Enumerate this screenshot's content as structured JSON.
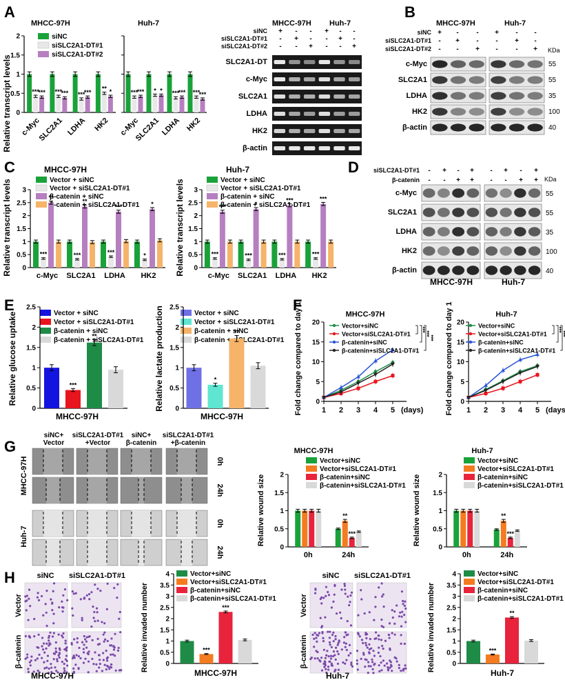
{
  "panels": {
    "A": "A",
    "B": "B",
    "C": "C",
    "D": "D",
    "E": "E",
    "F": "F",
    "G": "G",
    "H": "H"
  },
  "colors": {
    "green": "#1aa23a",
    "light": "#e8e8e8",
    "purple": "#b67fc0",
    "orange": "#f5b46a",
    "blue": "#1414e0",
    "red": "#e8141e",
    "dkgreen": "#1e8c46",
    "lgray": "#d9d9d9",
    "periw": "#7070e6",
    "teal": "#5ee6d2",
    "peach": "#f5b46a",
    "orange2": "#f47b20",
    "pink": "#e8233c"
  },
  "panelA": {
    "ylabel": "Relative transcript levels",
    "legend": [
      "siNC",
      "siSLC2A1-DT#1",
      "siSLC2A1-DT#2"
    ],
    "cell_titles": [
      "MHCC-97H",
      "Huh-7"
    ],
    "blot_header": [
      "MHCC-97H",
      "Huh-7"
    ],
    "blot_conditions": [
      "siNC",
      "siSLC2A1-DT#1",
      "siSLC2A1-DT#2"
    ],
    "blot_signs": [
      [
        "+",
        "-",
        "-",
        "+",
        "-",
        "-"
      ],
      [
        "-",
        "+",
        "-",
        "-",
        "+",
        "-"
      ],
      [
        "-",
        "-",
        "+",
        "-",
        "-",
        "+"
      ]
    ],
    "blot_rows": [
      "SLC2A1-DT",
      "c-Myc",
      "SLC2A1",
      "LDHA",
      "HK2",
      "β-actin"
    ]
  },
  "panelB": {
    "header": [
      "MHCC-97H",
      "Huh-7"
    ],
    "conditions": [
      "siNC",
      "siSLC2A1-DT#1",
      "siSLC2A1-DT#2"
    ],
    "signs": [
      [
        "+",
        "-",
        "-",
        "+",
        "-",
        "-"
      ],
      [
        "-",
        "+",
        "-",
        "-",
        "+",
        "-"
      ],
      [
        "-",
        "-",
        "+",
        "-",
        "-",
        "+"
      ]
    ],
    "rows": [
      "c-Myc",
      "SLC2A1",
      "LDHA",
      "HK2",
      "β-actin"
    ],
    "kda": [
      "55",
      "55",
      "35",
      "100",
      "40"
    ],
    "kda_label": "KDa"
  },
  "panelC": {
    "ylabel": "Relative transcript levels",
    "legend": [
      "Vector + siNC",
      "Vector + siSLC2A1-DT#1",
      "β-catenin + siNC",
      "β-catenin + siSLC2A1-DT#1"
    ],
    "titles": [
      "MHCC-97H",
      "Huh-7"
    ]
  },
  "panelD": {
    "conditions": [
      "siSLC2A1-DT#1",
      "β-catenin"
    ],
    "signs": [
      [
        "-",
        "+",
        "-",
        "+",
        "-",
        "+",
        "-",
        "+"
      ],
      [
        "-",
        "-",
        "+",
        "+",
        "-",
        "-",
        "+",
        "+"
      ]
    ],
    "rows": [
      "c-Myc",
      "SLC2A1",
      "LDHA",
      "HK2",
      "β-actin"
    ],
    "kda": [
      "55",
      "55",
      "35",
      "100",
      "40"
    ],
    "kda_label": "KDa",
    "footer": [
      "MHCC-97H",
      "Huh-7"
    ]
  },
  "panelE": {
    "ylabel1": "Relative glucose uptake",
    "ylabel2": "Relative lactate production",
    "legend": [
      "Vector + siNC",
      "Vector + siSLC2A1-DT#1",
      "β-catenin + siNC",
      "β-catenin + siSLC2A1-DT#1"
    ],
    "xlabel": "MHCC-97H"
  },
  "panelF": {
    "ylabel": "Fold change compared to day 1",
    "titles": [
      "MHCC-97H",
      "Huh-7"
    ],
    "legend": [
      "Vector+siNC",
      "Vector+siSLC2A1-DT#1",
      "β-catenin+siNC",
      "β-catenin+siSLC2A1-DT#1"
    ],
    "xunit": "(days)"
  },
  "panelG": {
    "col_headers": [
      "siNC+\nVector",
      "siSLC2A1-DT#1\n+Vector",
      "siNC+\nβ-catenin",
      "siSLC2A1-DT#1\n+β-catenin"
    ],
    "row_cells": [
      "MHCC-97H",
      "Huh-7"
    ],
    "time_labels": [
      "0h",
      "24h",
      "0h",
      "24h"
    ],
    "ylabel": "Relative wound size",
    "titles": [
      "MHCC-97H",
      "Huh-7"
    ],
    "legend": [
      "Vector+siNC",
      "Vector+siSLC2A1-DT#1",
      "β-catenin+siNC",
      "β-catenin+siSLC2A1-DT#1"
    ]
  },
  "panelH": {
    "col_headers": [
      "siNC",
      "siSLC2A1-DT#1"
    ],
    "row_labels": [
      "Vector",
      "β-catenin"
    ],
    "cells": [
      "MHCC-97H",
      "Huh-7"
    ],
    "ylabel": "Relative invaded number",
    "legend": [
      "Vector+siNC",
      "Vector+siSLC2A1-DT#1",
      "β-catenin+siNC",
      "β-catenin+siSLC2A1-DT#1"
    ]
  },
  "chart_data": [
    {
      "type": "bar",
      "id": "A-MHCC",
      "categories": [
        "c-Myc",
        "SLC2A1",
        "LDHA",
        "HK2"
      ],
      "ylim": [
        0,
        2
      ],
      "yticks": [
        0,
        0.5,
        1,
        1.5,
        2
      ],
      "series": [
        {
          "name": "siNC",
          "values": [
            1,
            1,
            1,
            1
          ]
        },
        {
          "name": "siSLC2A1-DT#1",
          "values": [
            0.42,
            0.42,
            0.35,
            0.5
          ]
        },
        {
          "name": "siSLC2A1-DT#2",
          "values": [
            0.4,
            0.38,
            0.4,
            0.42
          ]
        }
      ],
      "sig": [
        [
          "***",
          "***"
        ],
        [
          "***",
          "***"
        ],
        [
          "***",
          "***"
        ],
        [
          "**",
          "*"
        ]
      ]
    },
    {
      "type": "bar",
      "id": "A-Huh7",
      "categories": [
        "c-Myc",
        "SLC2A1",
        "LDHA",
        "HK2"
      ],
      "ylim": [
        0,
        2
      ],
      "yticks": [
        0,
        0.5,
        1,
        1.5,
        2
      ],
      "series": [
        {
          "name": "siNC",
          "values": [
            1,
            1,
            1,
            1
          ]
        },
        {
          "name": "siSLC2A1-DT#1",
          "values": [
            0.4,
            0.45,
            0.38,
            0.4
          ]
        },
        {
          "name": "siSLC2A1-DT#2",
          "values": [
            0.42,
            0.45,
            0.4,
            0.35
          ]
        }
      ],
      "sig": [
        [
          "***",
          "***"
        ],
        [
          "*",
          "*"
        ],
        [
          "***",
          "***"
        ],
        [
          "***",
          "***"
        ]
      ]
    },
    {
      "type": "bar",
      "id": "C-MHCC",
      "categories": [
        "c-Myc",
        "SLC2A1",
        "LDHA",
        "HK2"
      ],
      "ylim": [
        0,
        3
      ],
      "yticks": [
        0,
        0.5,
        1,
        1.5,
        2,
        2.5,
        3
      ],
      "series": [
        {
          "name": "Vector + siNC",
          "values": [
            1,
            1,
            1,
            1
          ]
        },
        {
          "name": "Vector + siSLC2A1-DT#1",
          "values": [
            0.35,
            0.32,
            0.42,
            0.3
          ]
        },
        {
          "name": "β-catenin + siNC",
          "values": [
            2.5,
            2.35,
            2.15,
            2.25
          ]
        },
        {
          "name": "β-catenin + siSLC2A1-DT#1",
          "values": [
            1.0,
            0.98,
            1.02,
            1.05
          ]
        }
      ],
      "sig": [
        [
          "***",
          "**"
        ],
        [
          "***",
          "**"
        ],
        [
          "***",
          "***"
        ],
        [
          "*",
          "*"
        ]
      ]
    },
    {
      "type": "bar",
      "id": "C-Huh7",
      "categories": [
        "c-Myc",
        "SLC2A1",
        "LDHA",
        "HK2"
      ],
      "ylim": [
        0,
        3
      ],
      "yticks": [
        0,
        0.5,
        1,
        1.5,
        2,
        2.5,
        3
      ],
      "series": [
        {
          "name": "Vector + siNC",
          "values": [
            1,
            1,
            1,
            1
          ]
        },
        {
          "name": "Vector + siSLC2A1-DT#1",
          "values": [
            0.35,
            0.3,
            0.32,
            0.35
          ]
        },
        {
          "name": "β-catenin + siNC",
          "values": [
            2.15,
            2.25,
            2.4,
            2.45
          ]
        },
        {
          "name": "β-catenin + siSLC2A1-DT#1",
          "values": [
            1.0,
            1.0,
            1.0,
            1.0
          ]
        }
      ],
      "sig": [
        [
          "***",
          "***"
        ],
        [
          "***",
          "*"
        ],
        [
          "***",
          "***"
        ],
        [
          "***",
          "***"
        ]
      ]
    },
    {
      "type": "bar",
      "id": "E-glucose",
      "categories": [
        "MHCC-97H"
      ],
      "ylim": [
        0,
        2.5
      ],
      "yticks": [
        0,
        0.5,
        1,
        1.5,
        2,
        2.5
      ],
      "series": [
        {
          "name": "Vector + siNC",
          "values": [
            1.0
          ]
        },
        {
          "name": "Vector + siSLC2A1-DT#1",
          "values": [
            0.45
          ]
        },
        {
          "name": "β-catenin + siNC",
          "values": [
            1.62
          ]
        },
        {
          "name": "β-catenin + siSLC2A1-DT#1",
          "values": [
            0.95
          ]
        }
      ],
      "sig": [
        "",
        "***",
        "**",
        ""
      ]
    },
    {
      "type": "bar",
      "id": "E-lactate",
      "categories": [
        "MHCC-97H"
      ],
      "ylim": [
        0,
        2.5
      ],
      "yticks": [
        0,
        0.5,
        1,
        1.5,
        2,
        2.5
      ],
      "series": [
        {
          "name": "Vector + siNC",
          "values": [
            1.0
          ]
        },
        {
          "name": "Vector + siSLC2A1-DT#1",
          "values": [
            0.58
          ]
        },
        {
          "name": "β-catenin + siNC",
          "values": [
            1.72
          ]
        },
        {
          "name": "β-catenin + siSLC2A1-DT#1",
          "values": [
            1.05
          ]
        }
      ],
      "sig": [
        "",
        "*",
        "**",
        ""
      ]
    },
    {
      "type": "line",
      "id": "F-MHCC",
      "x": [
        1,
        2,
        3,
        4,
        5
      ],
      "ylim": [
        0,
        20
      ],
      "yticks": [
        0,
        5,
        10,
        15,
        20
      ],
      "series": [
        {
          "name": "Vector+siNC",
          "values": [
            1,
            2.8,
            5.0,
            7.5,
            9.8
          ]
        },
        {
          "name": "Vector+siSLC2A1-DT#1",
          "values": [
            1,
            2.0,
            3.3,
            5.0,
            6.5
          ]
        },
        {
          "name": "β-catenin+siNC",
          "values": [
            1,
            3.5,
            6.2,
            10.2,
            13.0
          ]
        },
        {
          "name": "β-catenin+siSLC2A1-DT#1",
          "values": [
            1,
            2.4,
            4.6,
            6.8,
            9.4
          ]
        }
      ],
      "sig": [
        "***",
        "***",
        "***"
      ]
    },
    {
      "type": "line",
      "id": "F-Huh7",
      "x": [
        1,
        2,
        3,
        4,
        5
      ],
      "ylim": [
        0,
        20
      ],
      "yticks": [
        0,
        5,
        10,
        15,
        20
      ],
      "series": [
        {
          "name": "Vector+siNC",
          "values": [
            1,
            3.0,
            5.2,
            7.5,
            9.0
          ]
        },
        {
          "name": "Vector+siSLC2A1-DT#1",
          "values": [
            1,
            2.0,
            3.3,
            5.0,
            6.7
          ]
        },
        {
          "name": "β-catenin+siNC",
          "values": [
            1,
            4.0,
            7.8,
            10.5,
            11.8
          ]
        },
        {
          "name": "β-catenin+siSLC2A1-DT#1",
          "values": [
            1,
            2.8,
            5.0,
            7.2,
            8.8
          ]
        }
      ],
      "sig": [
        "***",
        "***",
        "***"
      ]
    },
    {
      "type": "bar",
      "id": "G-MHCC",
      "categories": [
        "0h",
        "24h"
      ],
      "ylim": [
        0,
        2
      ],
      "yticks": [
        0,
        0.5,
        1,
        1.5,
        2
      ],
      "series": [
        {
          "name": "Vector+siNC",
          "values": [
            1.0,
            0.5
          ]
        },
        {
          "name": "Vector+siSLC2A1-DT#1",
          "values": [
            1.0,
            0.72
          ]
        },
        {
          "name": "β-catenin+siNC",
          "values": [
            1.0,
            0.25
          ]
        },
        {
          "name": "β-catenin+siSLC2A1-DT#1",
          "values": [
            1.0,
            0.42
          ]
        }
      ],
      "sig": [
        [
          "",
          "",
          "",
          ""
        ],
        [
          "",
          "**",
          "***",
          ""
        ]
      ]
    },
    {
      "type": "bar",
      "id": "G-Huh7",
      "categories": [
        "0h",
        "24h"
      ],
      "ylim": [
        0,
        2
      ],
      "yticks": [
        0,
        0.5,
        1,
        1.5,
        2
      ],
      "series": [
        {
          "name": "Vector+siNC",
          "values": [
            1.0,
            0.48
          ]
        },
        {
          "name": "Vector+siSLC2A1-DT#1",
          "values": [
            1.0,
            0.72
          ]
        },
        {
          "name": "β-catenin+siNC",
          "values": [
            1.0,
            0.25
          ]
        },
        {
          "name": "β-catenin+siSLC2A1-DT#1",
          "values": [
            1.0,
            0.45
          ]
        }
      ],
      "sig": [
        [
          "",
          "",
          "",
          ""
        ],
        [
          "",
          "**",
          "***",
          ""
        ]
      ]
    },
    {
      "type": "bar",
      "id": "H-MHCC",
      "categories": [
        "MHCC-97H"
      ],
      "ylim": [
        0,
        4
      ],
      "yticks": [
        0,
        0.5,
        1,
        1.5,
        2,
        2.5,
        3,
        3.5,
        4
      ],
      "series": [
        {
          "name": "Vector+siNC",
          "values": [
            1.0
          ]
        },
        {
          "name": "Vector+siSLC2A1-DT#1",
          "values": [
            0.42
          ]
        },
        {
          "name": "β-catenin+siNC",
          "values": [
            2.3
          ]
        },
        {
          "name": "β-catenin+siSLC2A1-DT#1",
          "values": [
            1.05
          ]
        }
      ],
      "sig": [
        "",
        "***",
        "***",
        ""
      ]
    },
    {
      "type": "bar",
      "id": "H-Huh7",
      "categories": [
        "Huh-7"
      ],
      "ylim": [
        0,
        4
      ],
      "yticks": [
        0,
        0.5,
        1,
        1.5,
        2,
        2.5,
        3,
        3.5,
        4
      ],
      "series": [
        {
          "name": "Vector+siNC",
          "values": [
            1.0
          ]
        },
        {
          "name": "Vector+siSLC2A1-DT#1",
          "values": [
            0.4
          ]
        },
        {
          "name": "β-catenin+siNC",
          "values": [
            2.05
          ]
        },
        {
          "name": "β-catenin+siSLC2A1-DT#1",
          "values": [
            1.02
          ]
        }
      ],
      "sig": [
        "",
        "***",
        "**",
        ""
      ]
    }
  ]
}
